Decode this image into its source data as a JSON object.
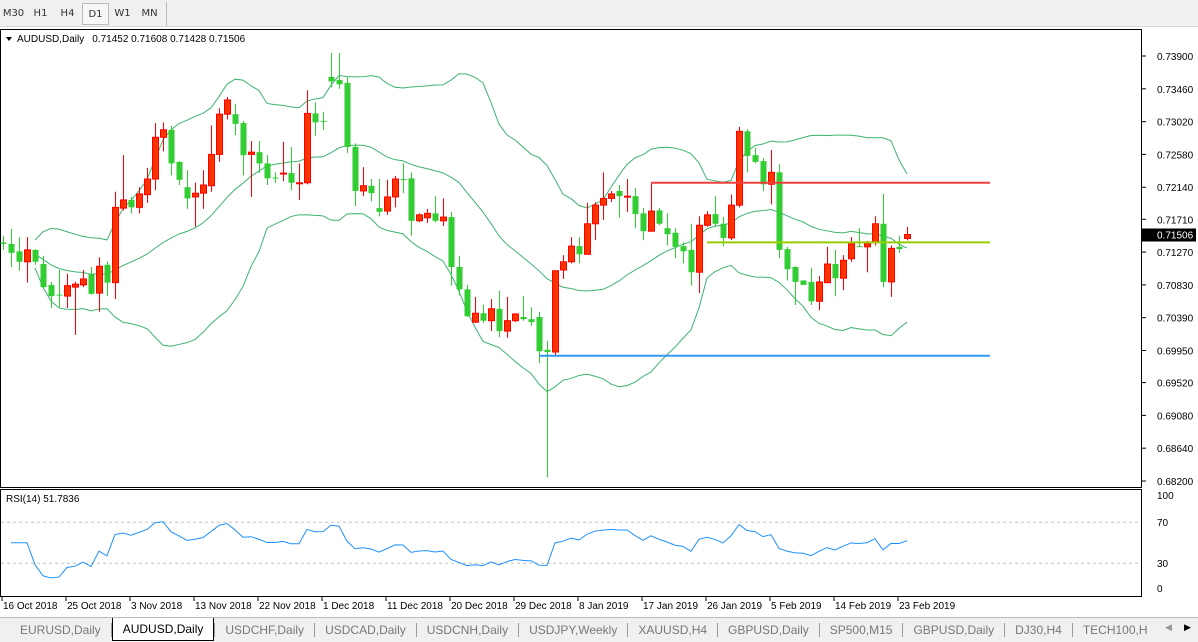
{
  "toolbar": {
    "timeframes": [
      "M30",
      "H1",
      "H4",
      "D1",
      "W1",
      "MN"
    ],
    "active": "D1"
  },
  "chart": {
    "header": "AUDUSD,Daily",
    "ohlc_text": "0.71452 0.71608 0.71428 0.71506",
    "current_price": "0.71506",
    "price_labels": [
      "0.73900",
      "0.73460",
      "0.73020",
      "0.72580",
      "0.72140",
      "0.71710",
      "0.71270",
      "0.70830",
      "0.70390",
      "0.69950",
      "0.69520",
      "0.69080",
      "0.68640",
      "0.68200"
    ],
    "date_labels": [
      "16 Oct 2018",
      "25 Oct 2018",
      "3 Nov 2018",
      "13 Nov 2018",
      "22 Nov 2018",
      "1 Dec 2018",
      "11 Dec 2018",
      "20 Dec 2018",
      "29 Dec 2018",
      "8 Jan 2019",
      "17 Jan 2019",
      "26 Jan 2019",
      "5 Feb 2019",
      "14 Feb 2019",
      "23 Feb 2019"
    ],
    "colors": {
      "bull": "#ff3300",
      "bull_border": "#ff0000",
      "bear": "#32cd32",
      "bands": "#3cb371",
      "rsi": "#1e90ff",
      "line_red": "#f04040",
      "line_green": "#99cc00",
      "line_blue": "#3399ee"
    },
    "bollinger": {
      "period": 20,
      "deviation": 2
    },
    "horizontal_lines": [
      {
        "price": 0.722,
        "color": "#f04040",
        "start_bar": 82
      },
      {
        "price": 0.714,
        "color": "#99cc00",
        "start_bar": 89
      },
      {
        "price": 0.6988,
        "color": "#3399ee",
        "start_bar": 68
      }
    ],
    "candles": [
      [
        0.714,
        0.7149,
        0.713,
        0.7138
      ],
      [
        0.7138,
        0.7158,
        0.7107,
        0.7126
      ],
      [
        0.7128,
        0.7147,
        0.7102,
        0.7114
      ],
      [
        0.7114,
        0.7147,
        0.7086,
        0.713
      ],
      [
        0.713,
        0.7131,
        0.711,
        0.7114
      ],
      [
        0.7111,
        0.7122,
        0.7079,
        0.708
      ],
      [
        0.7083,
        0.7087,
        0.7052,
        0.7068
      ],
      [
        0.707,
        0.7103,
        0.7053,
        0.7069
      ],
      [
        0.7068,
        0.7098,
        0.7052,
        0.7082
      ],
      [
        0.708,
        0.7087,
        0.7016,
        0.7084
      ],
      [
        0.7083,
        0.7103,
        0.708,
        0.7091
      ],
      [
        0.7097,
        0.7107,
        0.707,
        0.7071
      ],
      [
        0.7072,
        0.712,
        0.7047,
        0.7108
      ],
      [
        0.711,
        0.7114,
        0.7068,
        0.7086
      ],
      [
        0.7086,
        0.7208,
        0.7064,
        0.7187
      ],
      [
        0.7186,
        0.7257,
        0.7183,
        0.7197
      ],
      [
        0.7197,
        0.7201,
        0.7179,
        0.7187
      ],
      [
        0.7187,
        0.7214,
        0.7179,
        0.7205
      ],
      [
        0.7204,
        0.724,
        0.7193,
        0.7225
      ],
      [
        0.7225,
        0.73,
        0.721,
        0.7281
      ],
      [
        0.7281,
        0.7301,
        0.7262,
        0.7291
      ],
      [
        0.7291,
        0.7296,
        0.723,
        0.7246
      ],
      [
        0.7248,
        0.7249,
        0.7217,
        0.7224
      ],
      [
        0.7214,
        0.7237,
        0.7185,
        0.7199
      ],
      [
        0.7201,
        0.722,
        0.7161,
        0.7206
      ],
      [
        0.7206,
        0.7237,
        0.7185,
        0.7217
      ],
      [
        0.7216,
        0.7297,
        0.7208,
        0.7258
      ],
      [
        0.7258,
        0.732,
        0.7248,
        0.7312
      ],
      [
        0.7312,
        0.7335,
        0.7305,
        0.7331
      ],
      [
        0.7312,
        0.7326,
        0.7284,
        0.7299
      ],
      [
        0.73,
        0.7303,
        0.723,
        0.7257
      ],
      [
        0.7258,
        0.7276,
        0.7201,
        0.7261
      ],
      [
        0.7261,
        0.7276,
        0.7233,
        0.7246
      ],
      [
        0.7246,
        0.7257,
        0.7217,
        0.7226
      ],
      [
        0.7227,
        0.7234,
        0.722,
        0.7226
      ],
      [
        0.7232,
        0.7275,
        0.7222,
        0.7233
      ],
      [
        0.7233,
        0.7268,
        0.721,
        0.722
      ],
      [
        0.7219,
        0.7246,
        0.7197,
        0.722
      ],
      [
        0.722,
        0.7344,
        0.7218,
        0.7313
      ],
      [
        0.7313,
        0.7328,
        0.7283,
        0.7301
      ],
      [
        0.7303,
        0.7315,
        0.7291,
        0.7302
      ],
      [
        0.7362,
        0.7394,
        0.7348,
        0.7356
      ],
      [
        0.7358,
        0.7394,
        0.7346,
        0.7352
      ],
      [
        0.7354,
        0.7362,
        0.726,
        0.7268
      ],
      [
        0.7268,
        0.7273,
        0.7189,
        0.7209
      ],
      [
        0.7209,
        0.7241,
        0.7202,
        0.7216
      ],
      [
        0.7216,
        0.7225,
        0.7195,
        0.7206
      ],
      [
        0.7186,
        0.7225,
        0.7175,
        0.7181
      ],
      [
        0.7182,
        0.7224,
        0.7177,
        0.7201
      ],
      [
        0.7201,
        0.7229,
        0.7187,
        0.7225
      ],
      [
        0.7225,
        0.7246,
        0.7206,
        0.7224
      ],
      [
        0.7226,
        0.7234,
        0.7149,
        0.7169
      ],
      [
        0.7169,
        0.7179,
        0.7167,
        0.7177
      ],
      [
        0.7173,
        0.7185,
        0.7166,
        0.7179
      ],
      [
        0.7179,
        0.7202,
        0.7167,
        0.7169
      ],
      [
        0.7169,
        0.7199,
        0.7162,
        0.7174
      ],
      [
        0.7174,
        0.7181,
        0.7082,
        0.7107
      ],
      [
        0.7107,
        0.7122,
        0.7069,
        0.7077
      ],
      [
        0.7077,
        0.7083,
        0.704,
        0.7041
      ],
      [
        0.7033,
        0.7067,
        0.7032,
        0.7045
      ],
      [
        0.7045,
        0.7056,
        0.7032,
        0.7035
      ],
      [
        0.7035,
        0.7064,
        0.7021,
        0.7051
      ],
      [
        0.7051,
        0.7075,
        0.7013,
        0.7021
      ],
      [
        0.7021,
        0.7067,
        0.7012,
        0.7035
      ],
      [
        0.7035,
        0.7045,
        0.7033,
        0.7044
      ],
      [
        0.704,
        0.7068,
        0.7035,
        0.7037
      ],
      [
        0.7037,
        0.7053,
        0.7028,
        0.7033
      ],
      [
        0.704,
        0.7047,
        0.6978,
        0.6994
      ],
      [
        0.6996,
        0.7008,
        0.6825,
        0.6993
      ],
      [
        0.6993,
        0.7102,
        0.6988,
        0.7102
      ],
      [
        0.7103,
        0.7123,
        0.7091,
        0.7114
      ],
      [
        0.7114,
        0.7147,
        0.7112,
        0.7135
      ],
      [
        0.7135,
        0.7147,
        0.7112,
        0.7124
      ],
      [
        0.7124,
        0.7193,
        0.7124,
        0.7165
      ],
      [
        0.7165,
        0.7194,
        0.7143,
        0.719
      ],
      [
        0.719,
        0.7234,
        0.717,
        0.7199
      ],
      [
        0.7199,
        0.7209,
        0.7194,
        0.7205
      ],
      [
        0.7209,
        0.7217,
        0.7173,
        0.7202
      ],
      [
        0.7202,
        0.7225,
        0.7181,
        0.7202
      ],
      [
        0.7202,
        0.7213,
        0.7159,
        0.7178
      ],
      [
        0.7179,
        0.7186,
        0.7143,
        0.7155
      ],
      [
        0.7155,
        0.722,
        0.7155,
        0.7182
      ],
      [
        0.7183,
        0.7186,
        0.7163,
        0.7165
      ],
      [
        0.7159,
        0.7179,
        0.7136,
        0.7151
      ],
      [
        0.7153,
        0.7159,
        0.7119,
        0.7134
      ],
      [
        0.7135,
        0.714,
        0.7112,
        0.7128
      ],
      [
        0.713,
        0.7165,
        0.7082,
        0.71
      ],
      [
        0.71,
        0.7175,
        0.7072,
        0.7163
      ],
      [
        0.7163,
        0.7182,
        0.7161,
        0.7177
      ],
      [
        0.7178,
        0.7202,
        0.7161,
        0.7165
      ],
      [
        0.7165,
        0.7174,
        0.7135,
        0.7146
      ],
      [
        0.7146,
        0.7204,
        0.7143,
        0.719
      ],
      [
        0.719,
        0.7295,
        0.7187,
        0.7289
      ],
      [
        0.7289,
        0.7292,
        0.7234,
        0.7256
      ],
      [
        0.7257,
        0.7267,
        0.7246,
        0.7248
      ],
      [
        0.7249,
        0.7253,
        0.7209,
        0.7218
      ],
      [
        0.7218,
        0.7264,
        0.7191,
        0.7234
      ],
      [
        0.7234,
        0.7245,
        0.7119,
        0.713
      ],
      [
        0.7131,
        0.7134,
        0.7089,
        0.7104
      ],
      [
        0.7107,
        0.7108,
        0.7056,
        0.7087
      ],
      [
        0.7089,
        0.7089,
        0.7083,
        0.7083
      ],
      [
        0.7087,
        0.7106,
        0.7056,
        0.7061
      ],
      [
        0.7061,
        0.7095,
        0.7049,
        0.7087
      ],
      [
        0.7086,
        0.7134,
        0.7086,
        0.7111
      ],
      [
        0.7111,
        0.713,
        0.7068,
        0.7092
      ],
      [
        0.7092,
        0.7123,
        0.7076,
        0.7116
      ],
      [
        0.7118,
        0.7147,
        0.7114,
        0.7138
      ],
      [
        0.7135,
        0.7159,
        0.7134,
        0.7134
      ],
      [
        0.7134,
        0.7142,
        0.71,
        0.7139
      ],
      [
        0.714,
        0.7175,
        0.7136,
        0.7165
      ],
      [
        0.7165,
        0.7205,
        0.708,
        0.7087
      ],
      [
        0.7087,
        0.7136,
        0.7067,
        0.7132
      ],
      [
        0.7134,
        0.7149,
        0.7126,
        0.7131
      ],
      [
        0.71452,
        0.71608,
        0.71428,
        0.71506
      ]
    ]
  },
  "rsi": {
    "label": "RSI(14) 51.7836",
    "period": 14,
    "levels": [
      "70",
      "30"
    ],
    "scale_labels": [
      "100",
      "70",
      "30",
      "0"
    ]
  },
  "tabs": [
    {
      "label": "EURUSD,Daily"
    },
    {
      "label": "AUDUSD,Daily",
      "active": true
    },
    {
      "label": "USDCHF,Daily"
    },
    {
      "label": "USDCAD,Daily"
    },
    {
      "label": "USDCNH,Daily"
    },
    {
      "label": "USDJPY,Weekly"
    },
    {
      "label": "XAUUSD,H4"
    },
    {
      "label": "GBPUSD,Daily"
    },
    {
      "label": "SP500,M15"
    },
    {
      "label": "GBPUSD,Daily"
    },
    {
      "label": "DJ30,H4"
    },
    {
      "label": "TECH100,H"
    }
  ]
}
